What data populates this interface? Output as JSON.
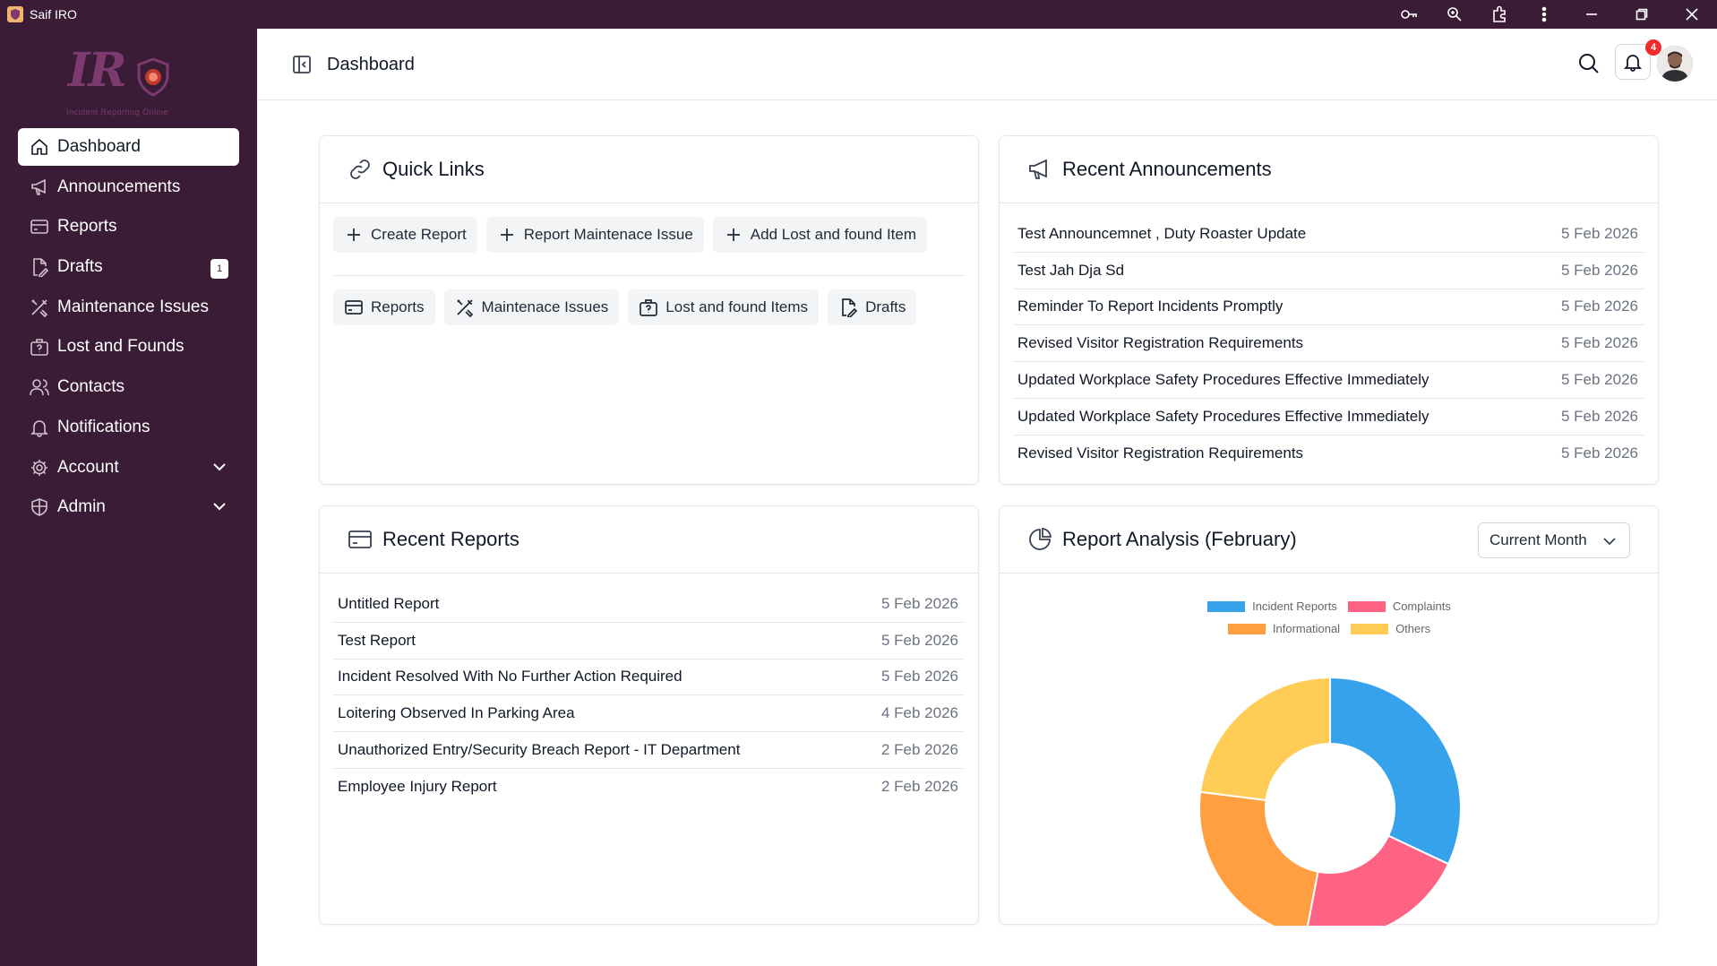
{
  "window": {
    "title": "Saif IRO",
    "controls": [
      "key-icon",
      "zoom-icon",
      "extensions-icon",
      "more-icon",
      "minimize-icon",
      "restore-icon",
      "close-icon"
    ]
  },
  "logo": {
    "text": "IR",
    "subtitle": "Incident Reporting Online"
  },
  "sidebar": {
    "items": [
      {
        "label": "Dashboard",
        "icon": "home-icon",
        "active": true
      },
      {
        "label": "Announcements",
        "icon": "megaphone-icon"
      },
      {
        "label": "Reports",
        "icon": "card-icon"
      },
      {
        "label": "Drafts",
        "icon": "file-edit-icon",
        "badge": "1"
      },
      {
        "label": "Maintenance Issues",
        "icon": "tools-icon"
      },
      {
        "label": "Lost and Founds",
        "icon": "briefcase-question-icon"
      },
      {
        "label": "Contacts",
        "icon": "users-icon"
      },
      {
        "label": "Notifications",
        "icon": "bell-icon"
      },
      {
        "label": "Account",
        "icon": "gear-icon",
        "expandable": true
      },
      {
        "label": "Admin",
        "icon": "shield-icon",
        "expandable": true
      }
    ]
  },
  "header": {
    "title": "Dashboard",
    "notification_count": "4"
  },
  "quick_links": {
    "title": "Quick Links",
    "actions": [
      {
        "label": "Create Report",
        "icon": "plus-icon"
      },
      {
        "label": "Report Maintenace Issue",
        "icon": "plus-icon"
      },
      {
        "label": "Add Lost and found Item",
        "icon": "plus-icon"
      }
    ],
    "links": [
      {
        "label": "Reports",
        "icon": "card-icon"
      },
      {
        "label": "Maintenace Issues",
        "icon": "tools-icon"
      },
      {
        "label": "Lost and found Items",
        "icon": "briefcase-question-icon"
      },
      {
        "label": "Drafts",
        "icon": "file-edit-icon"
      }
    ]
  },
  "announcements": {
    "title": "Recent Announcements",
    "items": [
      {
        "title": "Test Announcemnet , Duty Roaster Update",
        "date": "5 Feb 2026"
      },
      {
        "title": "Test Jah Dja Sd",
        "date": "5 Feb 2026"
      },
      {
        "title": "Reminder To Report Incidents Promptly",
        "date": "5 Feb 2026"
      },
      {
        "title": "Revised Visitor Registration Requirements",
        "date": "5 Feb 2026"
      },
      {
        "title": "Updated Workplace Safety Procedures Effective Immediately",
        "date": "5 Feb 2026"
      },
      {
        "title": "Updated Workplace Safety Procedures Effective Immediately",
        "date": "5 Feb 2026"
      },
      {
        "title": "Revised Visitor Registration Requirements",
        "date": "5 Feb 2026"
      }
    ]
  },
  "recent_reports": {
    "title": "Recent Reports",
    "items": [
      {
        "title": "Untitled Report",
        "date": "5 Feb 2026"
      },
      {
        "title": "Test Report",
        "date": "5 Feb 2026"
      },
      {
        "title": "Incident Resolved With No Further Action Required",
        "date": "5 Feb 2026"
      },
      {
        "title": "Loitering Observed In Parking Area",
        "date": "4 Feb 2026"
      },
      {
        "title": "Unauthorized Entry/Security Breach Report - IT Department",
        "date": "2 Feb 2026"
      },
      {
        "title": "Employee Injury Report",
        "date": "2 Feb 2026"
      }
    ]
  },
  "analysis": {
    "title": "Report Analysis (February)",
    "period_selected": "Current Month"
  },
  "chart_data": {
    "type": "pie",
    "variant": "doughnut",
    "categories": [
      "Incident Reports",
      "Complaints",
      "Informational",
      "Others"
    ],
    "values": [
      32,
      21,
      24,
      23
    ],
    "colors": [
      "#36a2eb",
      "#ff6384",
      "#ff9f40",
      "#ffcd56"
    ],
    "legend_position": "top"
  }
}
